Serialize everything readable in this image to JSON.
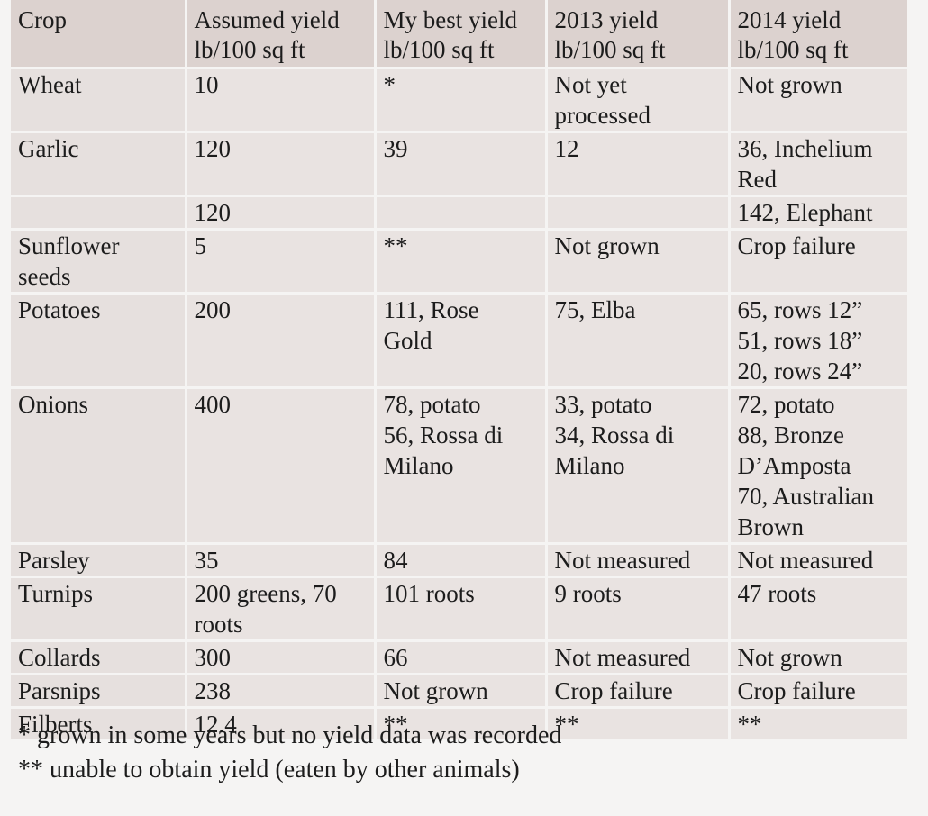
{
  "headers": [
    [
      "Crop"
    ],
    [
      "Assumed yield",
      "lb/100 sq ft"
    ],
    [
      "My best yield",
      "lb/100 sq ft"
    ],
    [
      "2013 yield",
      "lb/100 sq ft"
    ],
    [
      "2014 yield",
      "lb/100 sq ft"
    ]
  ],
  "rows": [
    [
      [
        "Wheat"
      ],
      [
        "10"
      ],
      [
        "*"
      ],
      [
        "Not yet",
        "processed"
      ],
      [
        "Not grown"
      ]
    ],
    [
      [
        "Garlic"
      ],
      [
        "120"
      ],
      [
        "39"
      ],
      [
        "12"
      ],
      [
        "36, Inchelium",
        "Red"
      ]
    ],
    [
      [
        ""
      ],
      [
        "120"
      ],
      [
        ""
      ],
      [
        ""
      ],
      [
        "142, Elephant"
      ]
    ],
    [
      [
        "Sunflower",
        "seeds"
      ],
      [
        "5"
      ],
      [
        "**"
      ],
      [
        "Not grown"
      ],
      [
        "Crop failure"
      ]
    ],
    [
      [
        "Potatoes"
      ],
      [
        "200"
      ],
      [
        "111, Rose",
        "Gold"
      ],
      [
        "75, Elba"
      ],
      [
        "65, rows 12”",
        "51, rows 18”",
        "20, rows 24”"
      ]
    ],
    [
      [
        "Onions"
      ],
      [
        "400"
      ],
      [
        "78, potato",
        "56, Rossa di",
        "Milano"
      ],
      [
        "33, potato",
        "34, Rossa di",
        "Milano"
      ],
      [
        "72, potato",
        "88, Bronze",
        "D’Amposta",
        "70, Australian",
        "Brown"
      ]
    ],
    [
      [
        "Parsley"
      ],
      [
        "35"
      ],
      [
        "84"
      ],
      [
        "Not measured"
      ],
      [
        "Not measured"
      ]
    ],
    [
      [
        "Turnips"
      ],
      [
        "200 greens, 70",
        "roots"
      ],
      [
        "101 roots"
      ],
      [
        "9 roots"
      ],
      [
        "47 roots"
      ]
    ],
    [
      [
        "Collards"
      ],
      [
        "300"
      ],
      [
        "66"
      ],
      [
        "Not measured"
      ],
      [
        "Not grown"
      ]
    ],
    [
      [
        "Parsnips"
      ],
      [
        "238"
      ],
      [
        "Not grown"
      ],
      [
        "Crop failure"
      ],
      [
        "Crop failure"
      ]
    ],
    [
      [
        "Filberts"
      ],
      [
        "12.4"
      ],
      [
        "**"
      ],
      [
        "**"
      ],
      [
        "**"
      ]
    ]
  ],
  "footnotes": {
    "note1": "* grown in some years but no yield data was recorded",
    "note2": "** unable to obtain yield (eaten by other animals)"
  }
}
